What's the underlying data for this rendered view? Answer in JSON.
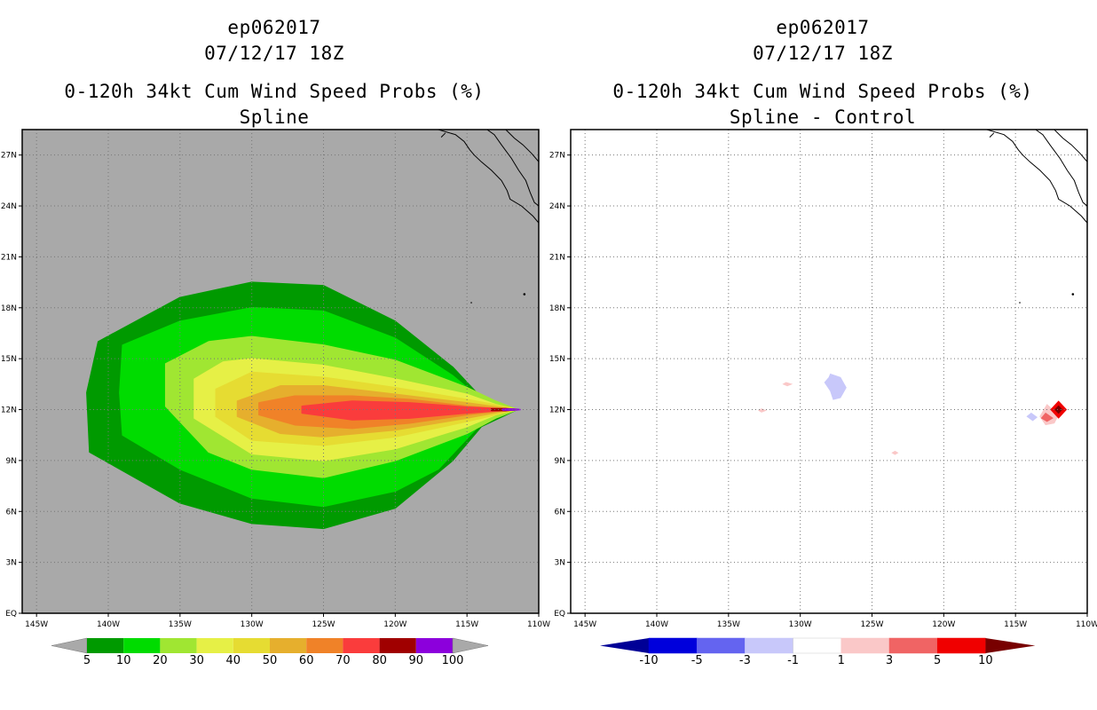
{
  "left_panel": {
    "storm_id": "ep062017",
    "datetime": "07/12/17 18Z",
    "product": "0-120h 34kt Cum Wind Speed Probs (%)",
    "subtitle": "Spline"
  },
  "right_panel": {
    "storm_id": "ep062017",
    "datetime": "07/12/17 18Z",
    "product": "0-120h 34kt Cum Wind Speed Probs (%)",
    "subtitle": "Spline - Control"
  },
  "chart_data": [
    {
      "type": "heatmap",
      "title": "0-120h 34kt Cum Wind Speed Probs (%) - Spline",
      "x_axis": {
        "range": [
          -146,
          -110
        ],
        "ticks": [
          -145,
          -140,
          -135,
          -130,
          -125,
          -120,
          -115,
          -110
        ],
        "tick_labels": [
          "145W",
          "140W",
          "135W",
          "130W",
          "125W",
          "120W",
          "115W",
          "110W"
        ]
      },
      "y_axis": {
        "range": [
          0,
          28.5
        ],
        "ticks": [
          0,
          3,
          6,
          9,
          12,
          15,
          18,
          21,
          24,
          27
        ],
        "tick_labels": [
          "EQ",
          "3N",
          "6N",
          "9N",
          "12N",
          "15N",
          "18N",
          "21N",
          "24N",
          "27N"
        ]
      },
      "background_color": "#a9a9a9",
      "colorbar": {
        "labels": [
          "5",
          "10",
          "20",
          "30",
          "40",
          "50",
          "60",
          "70",
          "80",
          "90",
          "100"
        ],
        "colors": [
          "#009a00",
          "#00dc00",
          "#a0e632",
          "#e6f046",
          "#e6dc32",
          "#e6af2d",
          "#f08228",
          "#fa3c3c",
          "#a00000",
          "#8c00dc"
        ],
        "end_color": "#a9a9a9"
      },
      "contours": [
        {
          "min": 5,
          "lon": [
            -140.7,
            -135,
            -130,
            -125,
            -120,
            -116,
            -114,
            -111.5,
            -114,
            -116,
            -120,
            -125,
            -130,
            -135,
            -141.3,
            -141.5
          ],
          "lat": [
            16,
            18.6,
            19.5,
            19.3,
            17.2,
            14.5,
            12.7,
            12,
            11,
            9,
            6.2,
            5,
            5.3,
            6.5,
            9.5,
            13
          ]
        },
        {
          "min": 10,
          "lon": [
            -139,
            -135,
            -130,
            -125,
            -120,
            -116,
            -114,
            -111.5,
            -114,
            -117,
            -120,
            -125,
            -130,
            -135,
            -139,
            -139.2
          ],
          "lat": [
            15.8,
            17.2,
            18,
            17.8,
            16.2,
            14,
            12.6,
            12,
            11.2,
            8.5,
            7.2,
            6.3,
            6.8,
            8.5,
            10.5,
            13
          ]
        },
        {
          "min": 20,
          "lon": [
            -136,
            -133,
            -130,
            -125,
            -120,
            -115,
            -113,
            -111.5,
            -113,
            -115,
            -120,
            -125,
            -130,
            -133,
            -136
          ],
          "lat": [
            14.7,
            16,
            16.3,
            15.8,
            14.9,
            13.3,
            12.5,
            12,
            11.5,
            10.6,
            9,
            8,
            8.5,
            9.5,
            12.2
          ]
        },
        {
          "min": 30,
          "lon": [
            -134,
            -132,
            -130,
            -125,
            -120,
            -115,
            -113,
            -111.5,
            -113,
            -115,
            -120,
            -125,
            -130,
            -134
          ],
          "lat": [
            13.8,
            14.8,
            15,
            14.6,
            13.8,
            12.9,
            12.3,
            12,
            11.7,
            11,
            9.7,
            9,
            9.4,
            11.5
          ]
        },
        {
          "min": 40,
          "lon": [
            -132.5,
            -130,
            -125,
            -120,
            -115,
            -112.5,
            -111.5,
            -112.5,
            -115,
            -120,
            -125,
            -130,
            -132.5
          ],
          "lat": [
            13.2,
            14.2,
            13.9,
            13.3,
            12.6,
            12.2,
            12,
            11.8,
            11.3,
            10.4,
            9.9,
            10.2,
            11.6
          ]
        },
        {
          "min": 50,
          "lon": [
            -131,
            -128,
            -125,
            -120,
            -115,
            -112.5,
            -111.5,
            -112.5,
            -115,
            -120,
            -125,
            -128,
            -131
          ],
          "lat": [
            12.5,
            13.4,
            13.4,
            12.9,
            12.4,
            12.1,
            12,
            11.9,
            11.5,
            10.8,
            10.4,
            10.6,
            11.6
          ]
        },
        {
          "min": 60,
          "lon": [
            -129.5,
            -127,
            -123,
            -119,
            -115,
            -112.5,
            -111.5,
            -112.5,
            -115,
            -119,
            -123,
            -127,
            -129.5
          ],
          "lat": [
            12.4,
            12.8,
            12.8,
            12.6,
            12.2,
            12.05,
            12,
            11.95,
            11.7,
            11.2,
            10.9,
            11.1,
            11.7
          ]
        },
        {
          "min": 70,
          "lon": [
            -126.5,
            -123,
            -119,
            -115,
            -112.5,
            -111.5,
            -112.5,
            -115,
            -119,
            -123,
            -126.5
          ],
          "lat": [
            12.2,
            12.5,
            12.4,
            12.15,
            12.05,
            12,
            11.95,
            11.8,
            11.5,
            11.4,
            11.8
          ]
        },
        {
          "min": 80,
          "lon": [
            -113.3,
            -112.3,
            -111.5,
            -112.3,
            -113.3
          ],
          "lat": [
            12.05,
            12.06,
            12,
            11.94,
            11.95
          ]
        },
        {
          "min": 90,
          "lon": [
            -112.5,
            -111.8,
            -111.3,
            -111.8,
            -112.5
          ],
          "lat": [
            12.03,
            12.04,
            12,
            11.96,
            11.97
          ]
        }
      ]
    },
    {
      "type": "heatmap",
      "title": "0-120h 34kt Cum Wind Speed Probs (%) - Spline - Control",
      "x_axis": {
        "range": [
          -146,
          -110
        ],
        "ticks": [
          -145,
          -140,
          -135,
          -130,
          -125,
          -120,
          -115,
          -110
        ],
        "tick_labels": [
          "145W",
          "140W",
          "135W",
          "130W",
          "125W",
          "120W",
          "115W",
          "110W"
        ]
      },
      "y_axis": {
        "range": [
          0,
          28.5
        ],
        "ticks": [
          0,
          3,
          6,
          9,
          12,
          15,
          18,
          21,
          24,
          27
        ],
        "tick_labels": [
          "EQ",
          "3N",
          "6N",
          "9N",
          "12N",
          "15N",
          "18N",
          "21N",
          "24N",
          "27N"
        ]
      },
      "background_color": "#ffffff",
      "colorbar": {
        "labels": [
          "-10",
          "-5",
          "-3",
          "-1",
          "1",
          "3",
          "5",
          "10"
        ],
        "colors": [
          "#0000dc",
          "#6464f0",
          "#c8c8fa",
          "#ffffff",
          "#fac8c8",
          "#f06464",
          "#f00000"
        ],
        "low_end_color": "#000096",
        "high_end_color": "#780000"
      },
      "blobs": [
        {
          "class": "-3 to -1",
          "lon": [
            -127.9,
            -127.2,
            -126.8,
            -127.2,
            -127.7,
            -127.9,
            -128.3,
            -128
          ],
          "lat": [
            14.1,
            13.9,
            13.3,
            12.7,
            12.6,
            13.1,
            13.6,
            13.9
          ]
        },
        {
          "class": "1 to 3",
          "lon": [
            -131,
            -130.6,
            -130.9,
            -131.2
          ],
          "lat": [
            13.6,
            13.5,
            13.4,
            13.5
          ]
        },
        {
          "class": "1 to 3",
          "lon": [
            -132.7,
            -132.4,
            -132.7,
            -132.9
          ],
          "lat": [
            12.05,
            11.95,
            11.85,
            11.95
          ]
        },
        {
          "class": "1 to 3",
          "lon": [
            -123.4,
            -123.2,
            -123.4,
            -123.6
          ],
          "lat": [
            9.55,
            9.45,
            9.35,
            9.45
          ]
        },
        {
          "class": "-3 to -1",
          "lon": [
            -113.9,
            -113.5,
            -113.8,
            -114.2
          ],
          "lat": [
            11.8,
            11.55,
            11.35,
            11.6
          ]
        },
        {
          "class": "1 to 3",
          "lon": [
            -112.8,
            -112,
            -112.3,
            -112.9,
            -113.3
          ],
          "lat": [
            12.3,
            11.7,
            11.2,
            11.1,
            11.6
          ]
        },
        {
          "class": "3 to 5",
          "lon": [
            -112.9,
            -112.4,
            -112.8,
            -113.2
          ],
          "lat": [
            11.8,
            11.5,
            11.3,
            11.5
          ]
        },
        {
          "class": "5 to 10",
          "lon": [
            -112,
            -111.45,
            -112,
            -112.55
          ],
          "lat": [
            12.5,
            12,
            11.5,
            12
          ]
        },
        {
          "class": ">10",
          "lon": [
            -112,
            -111.75,
            -112,
            -112.25
          ],
          "lat": [
            12.22,
            12,
            11.78,
            12
          ]
        }
      ]
    }
  ]
}
